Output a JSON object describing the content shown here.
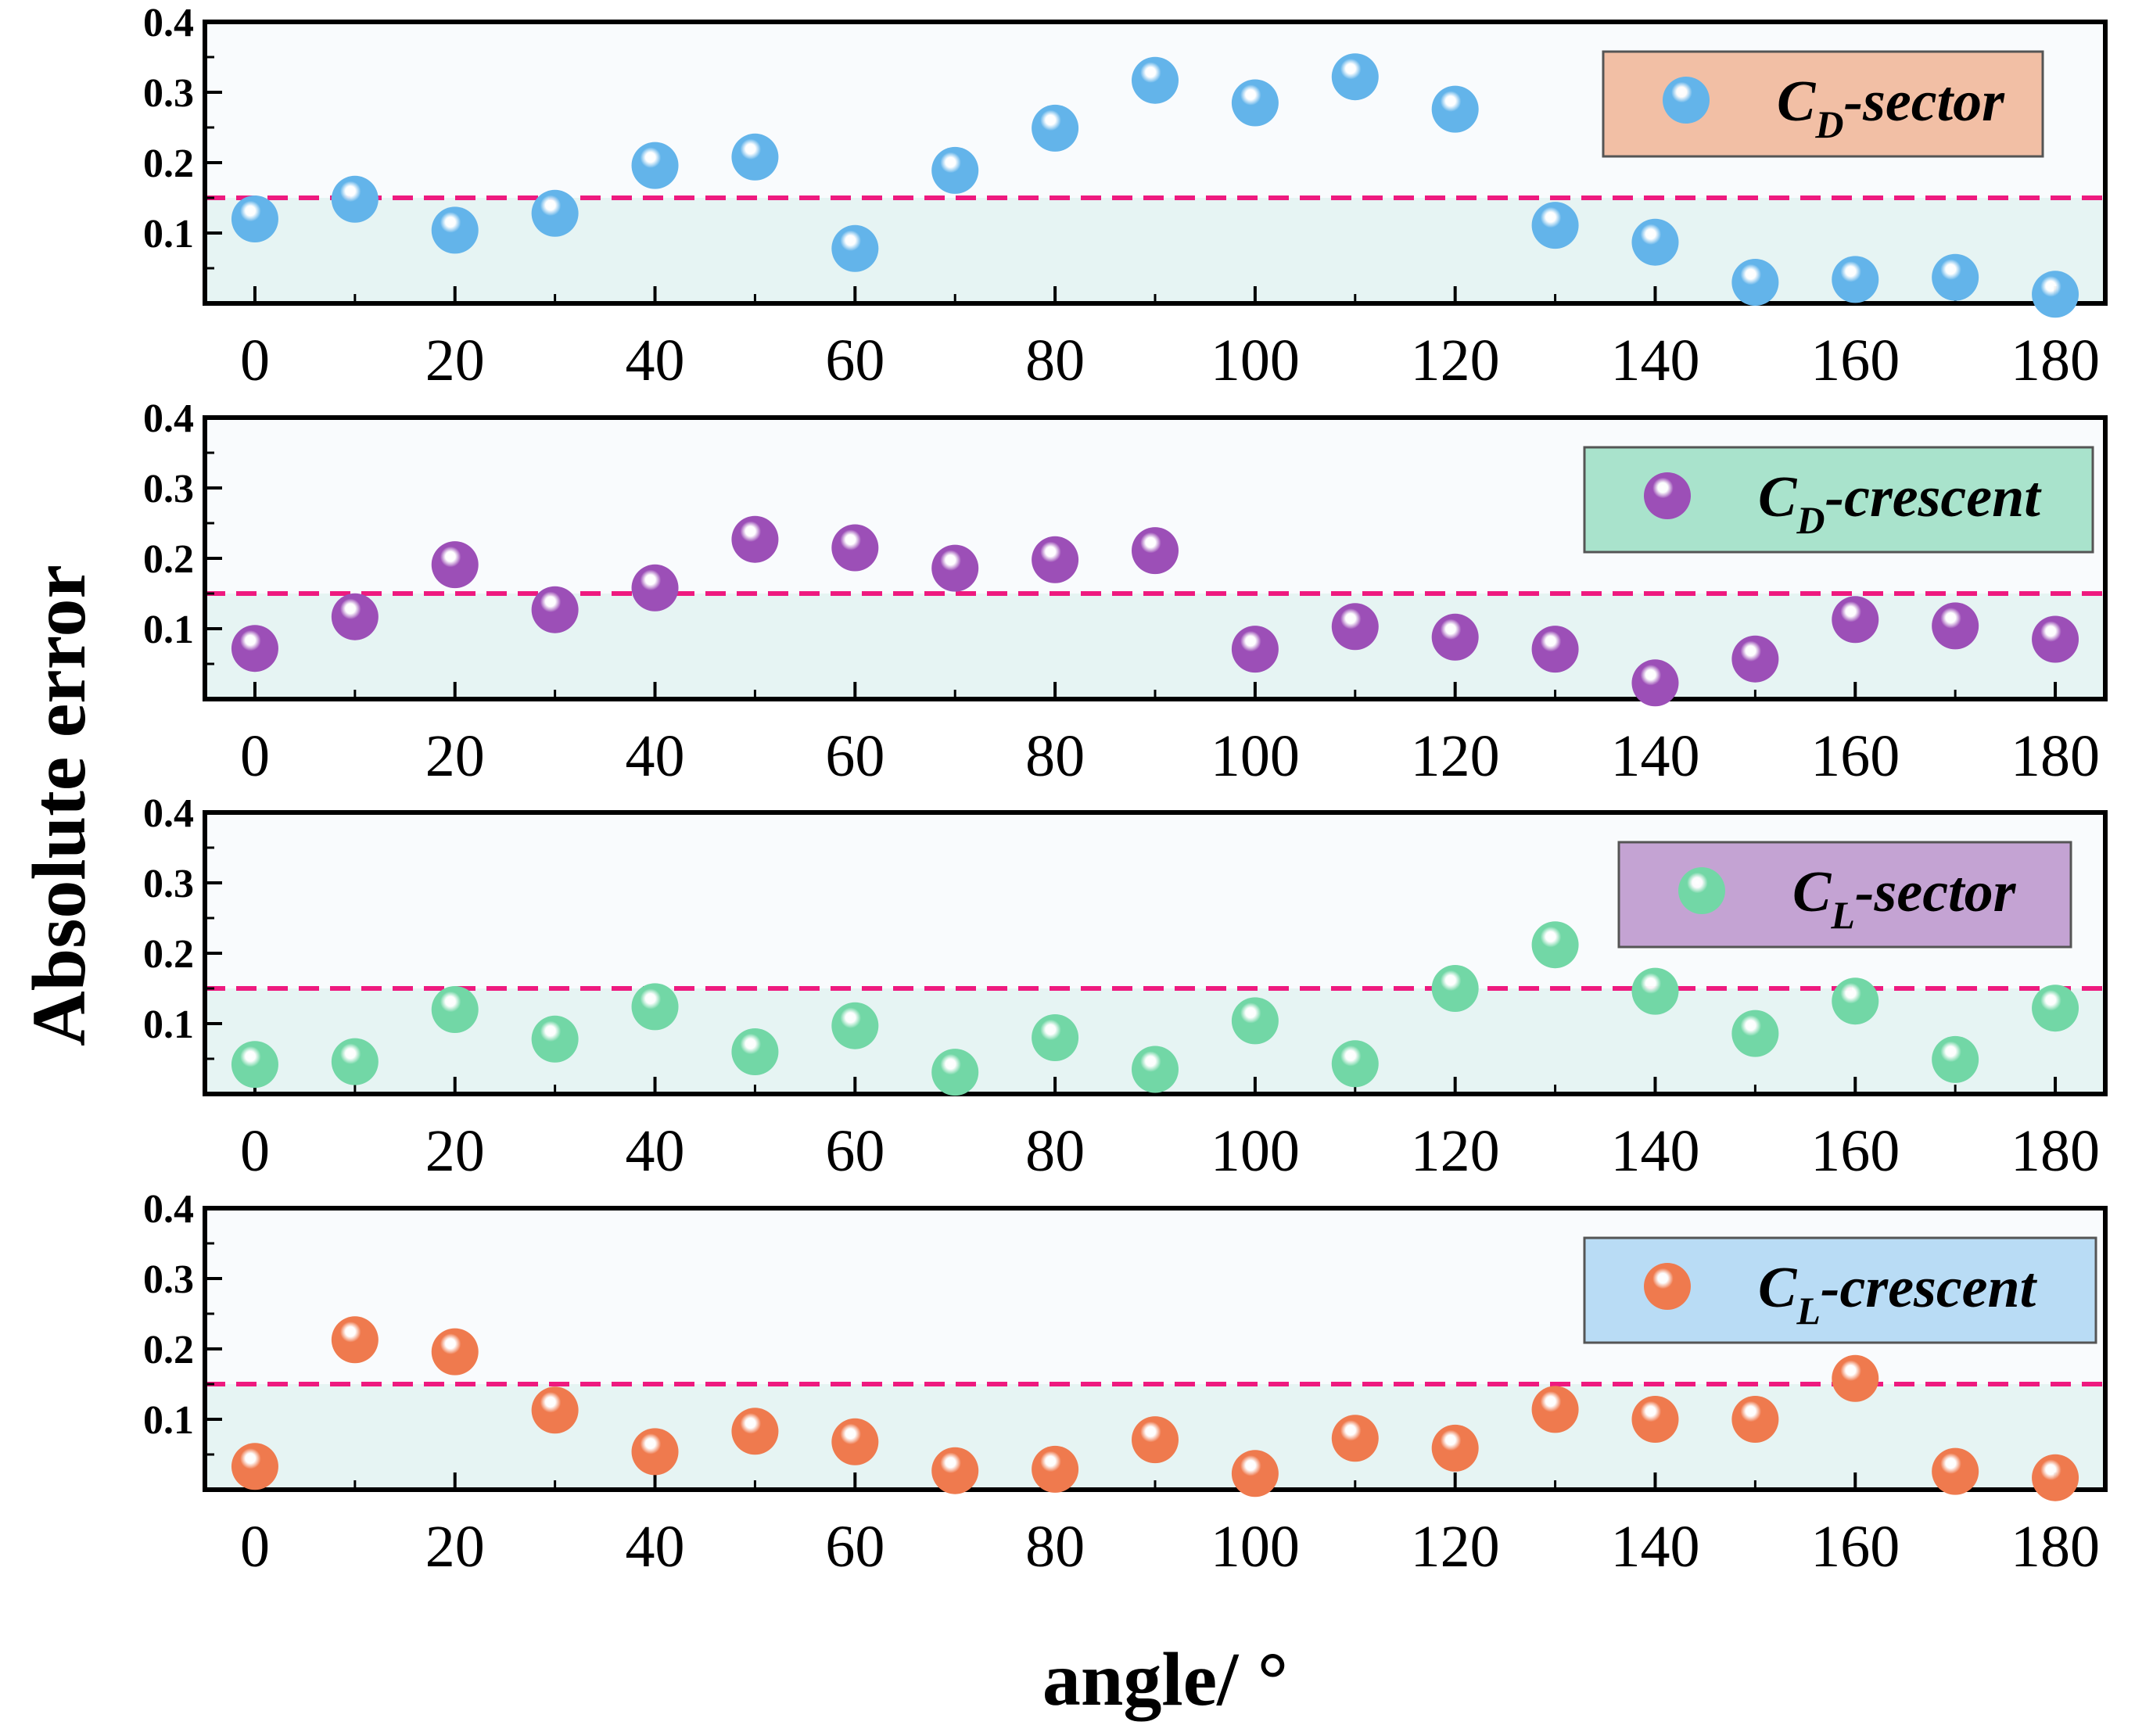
{
  "chart_data": {
    "type": "scatter",
    "xlabel": "angle/ °",
    "ylabel": "Absolute error",
    "xlim": [
      -5,
      185
    ],
    "ylim": [
      0,
      0.4
    ],
    "xticks": [
      0,
      20,
      40,
      60,
      80,
      100,
      120,
      140,
      160,
      180
    ],
    "yticks": [
      0.1,
      0.2,
      0.3,
      0.4
    ],
    "x": [
      0,
      10,
      20,
      30,
      40,
      50,
      60,
      70,
      80,
      90,
      100,
      110,
      120,
      130,
      140,
      150,
      160,
      170,
      180
    ],
    "threshold": 0.15,
    "series": [
      {
        "name": "C_D-sector",
        "legend_main": "C",
        "legend_sub": "D",
        "legend_tail": "-sector",
        "marker_color": "#63b4ea",
        "legend_box_color": "#f2bfa5",
        "values": [
          0.12,
          0.148,
          0.104,
          0.128,
          0.196,
          0.208,
          0.078,
          0.189,
          0.249,
          0.317,
          0.285,
          0.322,
          0.276,
          0.111,
          0.087,
          0.03,
          0.034,
          0.037,
          0.013
        ]
      },
      {
        "name": "C_D-crescent",
        "legend_main": "C",
        "legend_sub": "D",
        "legend_tail": "-crescent",
        "marker_color": "#9c4fb7",
        "legend_box_color": "#a9e3cc",
        "values": [
          0.072,
          0.117,
          0.191,
          0.127,
          0.158,
          0.227,
          0.215,
          0.186,
          0.198,
          0.211,
          0.071,
          0.103,
          0.088,
          0.071,
          0.023,
          0.057,
          0.113,
          0.104,
          0.085
        ]
      },
      {
        "name": "C_L-sector",
        "legend_main": "C",
        "legend_sub": "L",
        "legend_tail": "-sector",
        "marker_color": "#72d7a6",
        "legend_box_color": "#c4a3d3",
        "values": [
          0.042,
          0.046,
          0.12,
          0.078,
          0.124,
          0.06,
          0.097,
          0.031,
          0.08,
          0.035,
          0.104,
          0.043,
          0.15,
          0.212,
          0.146,
          0.086,
          0.132,
          0.049,
          0.122
        ]
      },
      {
        "name": "C_L-crescent",
        "legend_main": "C",
        "legend_sub": "L",
        "legend_tail": "-crescent",
        "marker_color": "#ef7a4e",
        "legend_box_color": "#b9dcf5",
        "values": [
          0.033,
          0.213,
          0.196,
          0.113,
          0.054,
          0.083,
          0.068,
          0.027,
          0.029,
          0.071,
          0.023,
          0.073,
          0.059,
          0.114,
          0.1,
          0.1,
          0.158,
          0.026,
          0.017
        ]
      }
    ],
    "colors": {
      "plot_background": "#f9fbfd",
      "band_fill": "#e6f4f3",
      "threshold_line": "#ee1a7f"
    }
  }
}
